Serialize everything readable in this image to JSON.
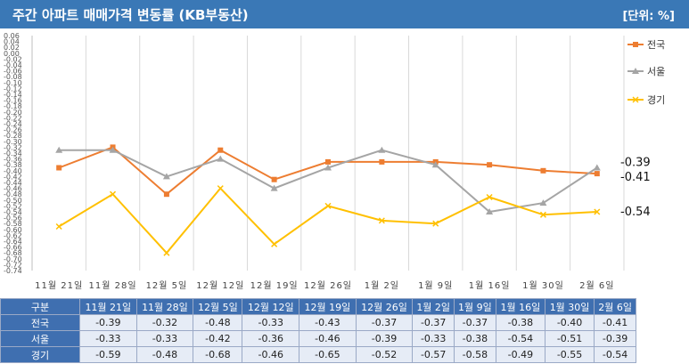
{
  "header": {
    "title": "주간 아파트 매매가격 변동률 (KB부동산)",
    "unit": "[단위: %]"
  },
  "colors": {
    "전국": "#ed7d31",
    "서울": "#a5a5a5",
    "경기": "#ffc000",
    "header": "#3a78b6"
  },
  "chart_data": {
    "type": "line",
    "title": "주간 아파트 매매가격 변동률 (KB부동산)",
    "categories": [
      "11월 21일",
      "11월 28일",
      "12월 5일",
      "12월 12일",
      "12월 19일",
      "12월 26일",
      "1월 2일",
      "1월 9일",
      "1월 16일",
      "1월 30일",
      "2월 6일"
    ],
    "series": [
      {
        "name": "전국",
        "values": [
          -0.39,
          -0.32,
          -0.48,
          -0.33,
          -0.43,
          -0.37,
          -0.37,
          -0.37,
          -0.38,
          -0.4,
          -0.41
        ]
      },
      {
        "name": "서울",
        "values": [
          -0.33,
          -0.33,
          -0.42,
          -0.36,
          -0.46,
          -0.39,
          -0.33,
          -0.38,
          -0.54,
          -0.51,
          -0.39
        ]
      },
      {
        "name": "경기",
        "values": [
          -0.59,
          -0.48,
          -0.68,
          -0.46,
          -0.65,
          -0.52,
          -0.57,
          -0.58,
          -0.49,
          -0.55,
          -0.54
        ]
      }
    ],
    "ylim": [
      -0.74,
      0.06
    ],
    "yticks": [
      "0.06",
      "0.04",
      "0.02",
      "0.00",
      "-0.02",
      "-0.04",
      "-0.06",
      "-0.08",
      "-0.10",
      "-0.12",
      "-0.14",
      "-0.16",
      "-0.18",
      "-0.20",
      "-0.22",
      "-0.24",
      "-0.26",
      "-0.28",
      "-0.30",
      "-0.32",
      "-0.34",
      "-0.36",
      "-0.38",
      "-0.40",
      "-0.42",
      "-0.44",
      "-0.46",
      "-0.48",
      "-0.50",
      "-0.52",
      "-0.54",
      "-0.56",
      "-0.58",
      "-0.60",
      "-0.62",
      "-0.64",
      "-0.66",
      "-0.68",
      "-0.70",
      "-0.72",
      "-0.74"
    ],
    "end_labels": [
      "-0.39",
      "-0.41",
      "-0.54"
    ],
    "legend": "right",
    "grid": true
  },
  "table": {
    "corner": "구분",
    "columns": [
      "11월 21일",
      "11월 28일",
      "12월 5일",
      "12월 12일",
      "12월 19일",
      "12월 26일",
      "1월 2일",
      "1월 9일",
      "1월 16일",
      "1월 30일",
      "2월 6일"
    ],
    "rows": [
      {
        "label": "전국",
        "values": [
          "-0.39",
          "-0.32",
          "-0.48",
          "-0.33",
          "-0.43",
          "-0.37",
          "-0.37",
          "-0.37",
          "-0.38",
          "-0.40",
          "-0.41"
        ]
      },
      {
        "label": "서울",
        "values": [
          "-0.33",
          "-0.33",
          "-0.42",
          "-0.36",
          "-0.46",
          "-0.39",
          "-0.33",
          "-0.38",
          "-0.54",
          "-0.51",
          "-0.39"
        ]
      },
      {
        "label": "경기",
        "values": [
          "-0.59",
          "-0.48",
          "-0.68",
          "-0.46",
          "-0.65",
          "-0.52",
          "-0.57",
          "-0.58",
          "-0.49",
          "-0.55",
          "-0.54"
        ]
      }
    ]
  }
}
